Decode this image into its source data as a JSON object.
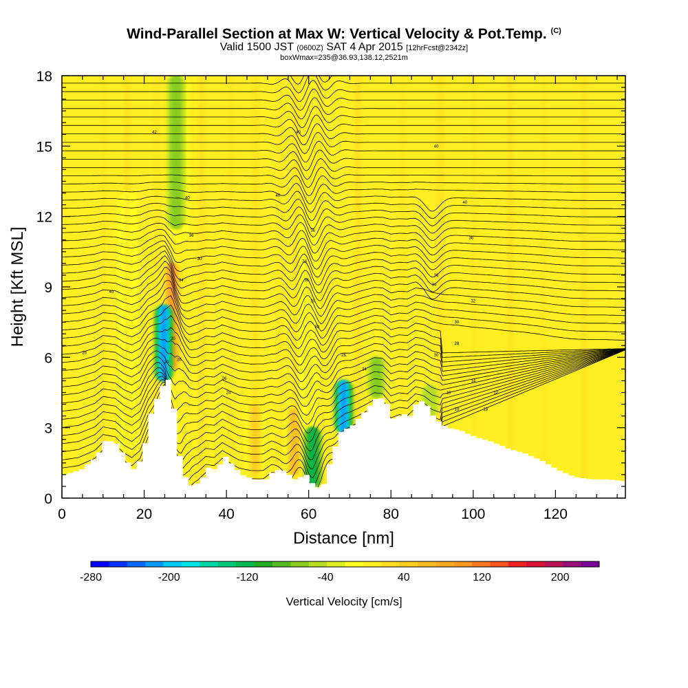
{
  "header": {
    "title_main": "Wind-Parallel Section at Max W: Vertical Velocity & Pot.Temp.",
    "title_mark": "(C)",
    "sub_a": "Valid 1500 JST",
    "sub_b": "(0600Z)",
    "sub_c": "SAT 4 Apr 2015",
    "sub_d": "[12hrFcst@2342z]",
    "sub2": "boxWmax=235@36.93,138.12,2521m"
  },
  "chart_data": {
    "type": "heatmap",
    "xlabel": "Distance [nm]",
    "ylabel": "Height [Kft MSL]",
    "xlim": [
      0,
      137
    ],
    "ylim": [
      0,
      18
    ],
    "x_ticks": [
      0,
      20,
      40,
      60,
      80,
      100,
      120
    ],
    "y_ticks": [
      0,
      3,
      6,
      9,
      12,
      15,
      18
    ],
    "background_color": "#ffee22",
    "colorbar": {
      "title": "Vertical Velocity [cm/s]",
      "range": [
        -280,
        240
      ],
      "step": 20,
      "tick_values": [
        -280,
        -200,
        -120,
        -40,
        40,
        120,
        200
      ],
      "colors": [
        "#0000ff",
        "#0030ff",
        "#0066ff",
        "#0099ff",
        "#00ccff",
        "#00e5e5",
        "#00d8a8",
        "#00c878",
        "#00b850",
        "#22aa22",
        "#55bb22",
        "#88cc22",
        "#b8dd22",
        "#ddee22",
        "#ffff22",
        "#ffee22",
        "#ffdd22",
        "#ffcc22",
        "#ffbb22",
        "#ffaa22",
        "#ff9922",
        "#ff7722",
        "#ff5522",
        "#ee2222",
        "#dd1133",
        "#bb1155",
        "#991177",
        "#770099"
      ]
    },
    "terrain_kft": [
      [
        0,
        1
      ],
      [
        4,
        1.2
      ],
      [
        8,
        1.8
      ],
      [
        10,
        2.5
      ],
      [
        13,
        2.3
      ],
      [
        15,
        1.6
      ],
      [
        17,
        1.2
      ],
      [
        19,
        1.8
      ],
      [
        21,
        3.6
      ],
      [
        23,
        4.5
      ],
      [
        25,
        5.2
      ],
      [
        26.5,
        4
      ],
      [
        27.5,
        2.2
      ],
      [
        29,
        1
      ],
      [
        31,
        0.5
      ],
      [
        33,
        0.7
      ],
      [
        35,
        1.3
      ],
      [
        37,
        1.2
      ],
      [
        39,
        1.8
      ],
      [
        41,
        1.4
      ],
      [
        43,
        1
      ],
      [
        46,
        0.8
      ],
      [
        49,
        0.8
      ],
      [
        51,
        1.2
      ],
      [
        53,
        1.2
      ],
      [
        56,
        0.8
      ],
      [
        59,
        1
      ],
      [
        61,
        0.4
      ],
      [
        63,
        0.6
      ],
      [
        65,
        1.8
      ],
      [
        67,
        2.8
      ],
      [
        70,
        3.1
      ],
      [
        73,
        3.7
      ],
      [
        76,
        4.3
      ],
      [
        78,
        4.2
      ],
      [
        80,
        3.3
      ],
      [
        82,
        3.6
      ],
      [
        84,
        3.5
      ],
      [
        86,
        4.2
      ],
      [
        88,
        4
      ],
      [
        90,
        3.4
      ],
      [
        93,
        3
      ],
      [
        96,
        2.9
      ],
      [
        100,
        2.6
      ],
      [
        104,
        2.4
      ],
      [
        108,
        2.1
      ],
      [
        112,
        1.9
      ],
      [
        116,
        1.6
      ],
      [
        120,
        1.2
      ],
      [
        124,
        0.9
      ],
      [
        128,
        0.8
      ],
      [
        132,
        0.8
      ],
      [
        137,
        0.7
      ]
    ],
    "updraft_bands": [
      {
        "x": 26.8,
        "ytop": 10,
        "ybot": 5.5,
        "w": 120
      },
      {
        "x": 28.5,
        "ytop": 18,
        "ybot": 11,
        "w": 20
      },
      {
        "x": 47,
        "ytop": 4,
        "ybot": 1,
        "w": 60
      },
      {
        "x": 56.5,
        "ytop": 3.8,
        "ybot": 1,
        "w": 80
      },
      {
        "x": 16,
        "ytop": 13,
        "ybot": 2,
        "w": 20
      },
      {
        "x": 60,
        "ytop": 12,
        "ybot": 3,
        "w": 20
      }
    ],
    "downdraft_bands": [
      {
        "x": 24.8,
        "ytop": 8.2,
        "ybot": 5,
        "w": -220
      },
      {
        "x": 27.8,
        "ytop": 18,
        "ybot": 11.5,
        "w": -60
      },
      {
        "x": 61,
        "ytop": 3,
        "ybot": 0.5,
        "w": -120
      },
      {
        "x": 68.5,
        "ytop": 5,
        "ybot": 2.8,
        "w": -220
      },
      {
        "x": 76.5,
        "ytop": 6,
        "ybot": 4.3,
        "w": -60
      },
      {
        "x": 89.5,
        "ytop": 4.8,
        "ybot": 3.5,
        "w": -40
      }
    ],
    "contour_labels": [
      {
        "x": 5.5,
        "y": 6.2,
        "text": "26"
      },
      {
        "x": 12,
        "y": 8.8,
        "text": "40"
      },
      {
        "x": 22.5,
        "y": 15.6,
        "text": "42"
      },
      {
        "x": 30.5,
        "y": 12.8,
        "text": "40"
      },
      {
        "x": 31.5,
        "y": 11.2,
        "text": "36"
      },
      {
        "x": 33.5,
        "y": 10.2,
        "text": "30"
      },
      {
        "x": 29,
        "y": 9.3,
        "text": "34"
      },
      {
        "x": 27,
        "y": 6.8,
        "text": "20"
      },
      {
        "x": 25.5,
        "y": 5.8,
        "text": "20"
      },
      {
        "x": 28.5,
        "y": 5.9,
        "text": "26"
      },
      {
        "x": 39.5,
        "y": 5.1,
        "text": "26"
      },
      {
        "x": 40.5,
        "y": 4.5,
        "text": "24"
      },
      {
        "x": 52.5,
        "y": 12.9,
        "text": "40"
      },
      {
        "x": 57.5,
        "y": 15.6,
        "text": "40"
      },
      {
        "x": 61,
        "y": 11.4,
        "text": "36"
      },
      {
        "x": 59,
        "y": 10.1,
        "text": "34"
      },
      {
        "x": 59.5,
        "y": 9.3,
        "text": "36"
      },
      {
        "x": 61,
        "y": 8.4,
        "text": "30"
      },
      {
        "x": 62,
        "y": 7.3,
        "text": "30"
      },
      {
        "x": 68.5,
        "y": 6.1,
        "text": "26"
      },
      {
        "x": 73.5,
        "y": 5.5,
        "text": "24"
      },
      {
        "x": 91,
        "y": 15.0,
        "text": "40"
      },
      {
        "x": 98,
        "y": 12.6,
        "text": "40"
      },
      {
        "x": 99.5,
        "y": 11.1,
        "text": "36"
      },
      {
        "x": 90.5,
        "y": 9.1,
        "text": "34"
      },
      {
        "x": 91,
        "y": 9.5,
        "text": "36"
      },
      {
        "x": 100,
        "y": 8.4,
        "text": "32"
      },
      {
        "x": 96,
        "y": 7.5,
        "text": "30"
      },
      {
        "x": 96,
        "y": 6.6,
        "text": "28"
      },
      {
        "x": 91,
        "y": 6.1,
        "text": "30"
      },
      {
        "x": 100,
        "y": 5.0,
        "text": "14"
      },
      {
        "x": 94,
        "y": 4.5,
        "text": "10"
      },
      {
        "x": 96,
        "y": 3.8,
        "text": "10"
      },
      {
        "x": 103,
        "y": 3.8,
        "text": "13"
      },
      {
        "x": 105.5,
        "y": 4.5,
        "text": "12"
      }
    ]
  }
}
